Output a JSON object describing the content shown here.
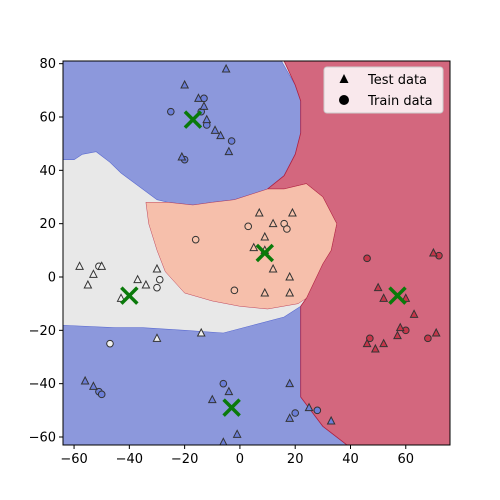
{
  "chart_data": {
    "type": "scatter",
    "title": "",
    "xlabel": "",
    "ylabel": "",
    "xlim": [
      -64,
      76
    ],
    "ylim": [
      -63,
      81
    ],
    "xticks": [
      -60,
      -40,
      -20,
      0,
      20,
      40,
      60
    ],
    "yticks": [
      -60,
      -40,
      -20,
      0,
      20,
      40,
      60,
      80
    ],
    "colors": {
      "blue_region": "#8c98dc",
      "gray_region": "#e8e8e8",
      "salmon_region": "#f6bfab",
      "red_region": "#d3677e",
      "red_edge": "#b02040",
      "blue_edge": "#5a6ad0",
      "marker_edge": "#333333",
      "centroid": "#0a7a0a",
      "blue_point": "#6c7fd8",
      "gray_point": "#f0f0f0",
      "salmon_point": "#f8c4ad",
      "red_point": "#c6364a"
    },
    "legend": {
      "position": "top-right",
      "entries": [
        {
          "label": "Test data",
          "marker": "triangle"
        },
        {
          "label": "Train data",
          "marker": "circle"
        }
      ]
    },
    "centroids": [
      {
        "x": -17,
        "y": 59
      },
      {
        "x": 9,
        "y": 9
      },
      {
        "x": -40,
        "y": -7
      },
      {
        "x": 57,
        "y": -7
      },
      {
        "x": -3,
        "y": -49
      }
    ],
    "series": [
      {
        "name": "cluster-top",
        "color_key": "blue_point",
        "test": [
          [
            -20,
            72
          ],
          [
            -15,
            67
          ],
          [
            -13,
            64
          ],
          [
            -12,
            59
          ],
          [
            -9,
            55
          ],
          [
            -5,
            78
          ],
          [
            -7,
            53
          ],
          [
            -4,
            47
          ],
          [
            -21,
            45
          ]
        ],
        "train": [
          [
            -25,
            62
          ],
          [
            -14,
            62
          ],
          [
            -13,
            67
          ],
          [
            -20,
            44
          ],
          [
            -3,
            51
          ],
          [
            -12,
            57
          ]
        ]
      },
      {
        "name": "cluster-center",
        "color_key": "salmon_point",
        "test": [
          [
            7,
            24
          ],
          [
            19,
            24
          ],
          [
            12,
            20
          ],
          [
            9,
            15
          ],
          [
            5,
            11
          ],
          [
            9,
            10
          ],
          [
            12,
            3
          ],
          [
            18,
            0
          ],
          [
            9,
            -6
          ],
          [
            18,
            -6
          ]
        ],
        "train": [
          [
            3,
            19
          ],
          [
            16,
            20
          ],
          [
            17,
            18
          ],
          [
            -16,
            14
          ],
          [
            -2,
            -5
          ]
        ]
      },
      {
        "name": "cluster-left",
        "color_key": "gray_point",
        "test": [
          [
            -58,
            4
          ],
          [
            -53,
            1
          ],
          [
            -50,
            4
          ],
          [
            -55,
            -3
          ],
          [
            -30,
            3
          ],
          [
            -37,
            -1
          ],
          [
            -34,
            -3
          ],
          [
            -43,
            -8
          ],
          [
            -30,
            -23
          ],
          [
            -14,
            -21
          ]
        ],
        "train": [
          [
            -51,
            4
          ],
          [
            -29,
            -1
          ],
          [
            -30,
            -4
          ],
          [
            -47,
            -25
          ]
        ]
      },
      {
        "name": "cluster-right",
        "color_key": "red_point",
        "test": [
          [
            50,
            -4
          ],
          [
            52,
            -8
          ],
          [
            60,
            -8
          ],
          [
            63,
            -14
          ],
          [
            58,
            -19
          ],
          [
            70,
            9
          ],
          [
            46,
            -25
          ],
          [
            52,
            -25
          ],
          [
            57,
            -22
          ],
          [
            49,
            -27
          ],
          [
            71,
            -21
          ]
        ],
        "train": [
          [
            46,
            7
          ],
          [
            72,
            8
          ],
          [
            47,
            -23
          ],
          [
            60,
            -20
          ],
          [
            68,
            -23
          ]
        ]
      },
      {
        "name": "cluster-bottom",
        "color_key": "blue_point",
        "test": [
          [
            -56,
            -39
          ],
          [
            -53,
            -41
          ],
          [
            -10,
            -46
          ],
          [
            -4,
            -43
          ],
          [
            18,
            -40
          ],
          [
            -1,
            -59
          ],
          [
            -6,
            -62
          ],
          [
            18,
            -53
          ],
          [
            25,
            -49
          ],
          [
            33,
            -54
          ]
        ],
        "train": [
          [
            -51,
            -43
          ],
          [
            -50,
            -44
          ],
          [
            -6,
            -40
          ],
          [
            20,
            -51
          ],
          [
            28,
            -50
          ]
        ]
      }
    ]
  }
}
